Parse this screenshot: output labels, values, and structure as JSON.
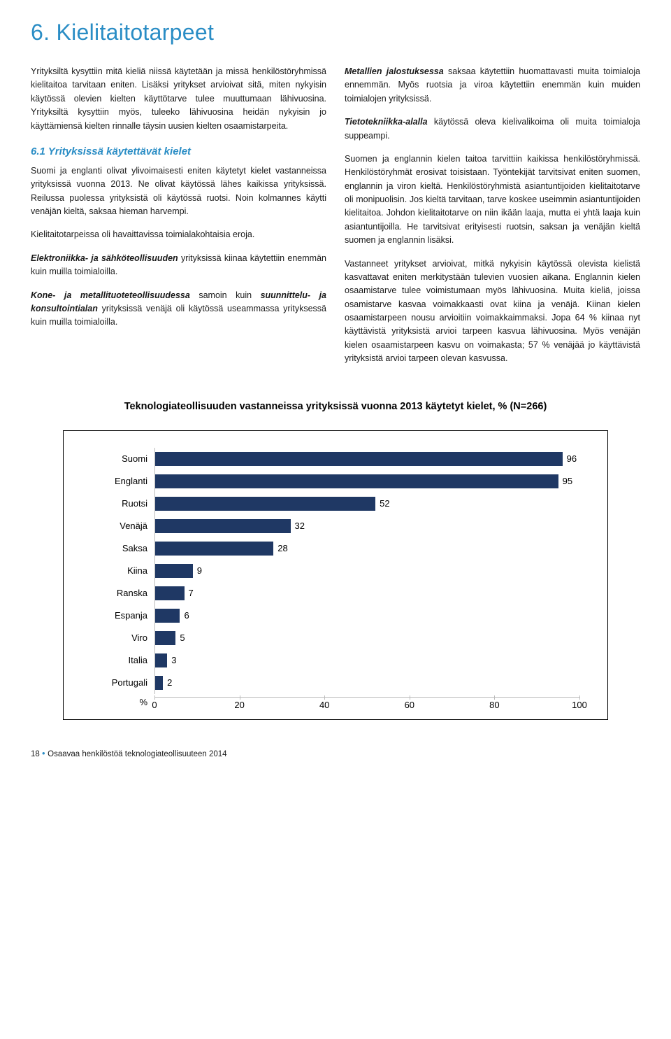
{
  "title": "6. Kielitaitotarpeet",
  "left": {
    "p1": "Yrityksiltä kysyttiin mitä kieliä niissä käytetään ja missä henkilöstöryhmissä kielitaitoa tarvitaan eniten. Lisäksi yritykset arvioivat sitä, miten nykyisin käytössä olevien kielten käyttötarve tulee muuttumaan lähivuosina. Yrityksiltä kysyttiin myös, tuleeko lähivuosina heidän nykyisin jo käyttämiensä kielten rinnalle täysin uusien kielten osaamistarpeita.",
    "h2": "6.1 Yrityksissä käytettävät kielet",
    "p2": "Suomi ja englanti olivat ylivoimaisesti eniten käytetyt kielet vastanneissa yrityksissä vuonna 2013. Ne olivat käytössä lähes kaikissa yrityksissä. Reilussa puolessa yrityksistä oli käytössä ruotsi. Noin kolmannes käytti venäjän kieltä, saksaa hieman harvempi.",
    "p3": "Kielitaitotarpeissa oli havaittavissa toimialakohtaisia eroja.",
    "p4a": "Elektroniikka- ja sähköteollisuuden",
    "p4b": " yrityksissä kiinaa käytettiin enemmän kuin muilla toimialoilla.",
    "p5a": "Kone- ja metallituoteteollisuudessa",
    "p5b": " samoin kuin ",
    "p5c": "suunnittelu- ja konsultointialan",
    "p5d": " yrityksissä venäjä oli käytössä useammassa yrityksessä kuin muilla toimialoilla."
  },
  "right": {
    "p1a": "Metallien jalostuksessa",
    "p1b": " saksaa käytettiin huomattavasti muita toimialoja ennemmän. Myös ruotsia ja viroa käytettiin enemmän kuin muiden toimialojen yrityksissä.",
    "p2a": "Tietotekniikka-alalla",
    "p2b": " käytössä oleva kielivalikoima oli muita toimialoja suppeampi.",
    "p3": "Suomen ja englannin kielen taitoa tarvittiin kaikissa henkilöstöryhmissä. Henkilöstöryhmät erosivat toisistaan. Työntekijät tarvitsivat eniten suomen, englannin ja viron kieltä. Henkilöstöryhmistä asiantuntijoiden kielitaitotarve oli monipuolisin. Jos kieltä tarvitaan, tarve koskee useimmin asiantuntijoiden kielitaitoa. Johdon kielitaitotarve on niin ikään laaja, mutta ei yhtä laaja kuin asiantuntijoilla. He tarvitsivat erityisesti ruotsin, saksan ja venäjän kieltä suomen ja englannin lisäksi.",
    "p4": "Vastanneet yritykset arvioivat, mitkä nykyisin käytössä olevista kielistä kasvattavat eniten merkitystään tulevien vuosien aikana. Englannin kielen osaamistarve tulee voimistumaan myös lähivuosina. Muita kieliä, joissa osamistarve kasvaa voimakkaasti ovat kiina ja venäjä. Kiinan kielen osaamistarpeen nousu arvioitiin voimakkaimmaksi. Jopa 64 % kiinaa nyt käyttävistä yrityksistä arvioi tarpeen kasvua lähivuosina. Myös venäjän kielen osaamistarpeen kasvu on voimakasta; 57 % venäjää jo käyttävistä yrityksistä arvioi tarpeen olevan kasvussa."
  },
  "chart": {
    "title": "Teknologiateollisuuden vastanneissa yrityksissä vuonna 2013 käytetyt kielet, % (N=266)",
    "type": "bar-horizontal",
    "bar_color": "#1f3864",
    "background_color": "#ffffff",
    "border_color": "#000000",
    "axis_color": "#bbbbbb",
    "label_fontsize": 13,
    "xlim": [
      0,
      100
    ],
    "xtick_step": 20,
    "xticks": [
      0,
      20,
      40,
      60,
      80,
      100
    ],
    "xlabel": "%",
    "categories": [
      "Suomi",
      "Englanti",
      "Ruotsi",
      "Venäjä",
      "Saksa",
      "Kiina",
      "Ranska",
      "Espanja",
      "Viro",
      "Italia",
      "Portugali"
    ],
    "values": [
      96,
      95,
      52,
      32,
      28,
      9,
      7,
      6,
      5,
      3,
      2
    ]
  },
  "footer": {
    "page_no": "18",
    "text": "Osaavaa henkilöstöä teknologiateollisuuteen 2014"
  }
}
